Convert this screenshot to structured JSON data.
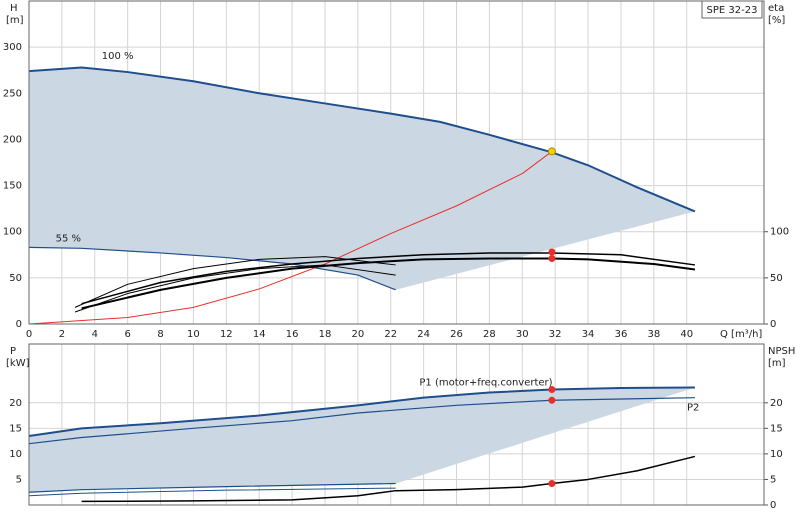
{
  "chart_data": [
    {
      "type": "line",
      "title": "SPE 32-23",
      "y_label": "H",
      "y_unit": "[m]",
      "y2_label": "eta",
      "y2_unit": "[%]",
      "x_label": "Q [m³/h]",
      "xlim": [
        0,
        44.7
      ],
      "xticks": [
        0,
        2,
        4,
        6,
        8,
        10,
        12,
        14,
        16,
        18,
        20,
        22,
        24,
        26,
        28,
        30,
        32,
        34,
        36,
        38,
        40
      ],
      "ylim": [
        0,
        350
      ],
      "yticks": [
        0,
        50,
        100,
        150,
        200,
        250,
        300
      ],
      "y2lim": [
        0,
        350
      ],
      "y2ticks": [
        0,
        50,
        100
      ],
      "grid": true,
      "envelope": [
        0,
        1
      ],
      "envelope_color": "#cbd8e4",
      "series": [
        {
          "name": "100 %",
          "color": "#1f4e8c",
          "width": 2,
          "x": [
            0,
            3.2,
            6,
            10,
            14,
            18,
            22,
            25,
            28,
            31.8,
            34,
            37,
            40.5
          ],
          "values": [
            274,
            278,
            273,
            263,
            250,
            239,
            228,
            219,
            205,
            186,
            172,
            148,
            122
          ]
        },
        {
          "name": "55 %",
          "color": "#1f4e8c",
          "width": 1.2,
          "x": [
            0,
            3.2,
            8,
            12,
            16,
            20,
            22.3
          ],
          "values": [
            83,
            82,
            77,
            72,
            65,
            53,
            37
          ]
        },
        {
          "color": "#e8302a",
          "width": 1,
          "x": [
            0,
            6,
            10,
            14,
            18,
            22,
            26,
            30,
            31.8
          ],
          "values": [
            0,
            7,
            18,
            38,
            65,
            98,
            128,
            163,
            187
          ]
        },
        {
          "color": "#000000",
          "width": 2,
          "axis": "y2",
          "x": [
            3.2,
            8,
            12,
            16,
            20,
            24,
            28,
            31.8,
            34,
            38,
            40.5
          ],
          "values": [
            17,
            37,
            50,
            60,
            66,
            70,
            71,
            71,
            70,
            65,
            59
          ]
        },
        {
          "color": "#000000",
          "width": 1.5,
          "axis": "y2",
          "x": [
            3.2,
            8,
            12,
            16,
            20,
            24,
            28,
            31.8,
            36,
            40.5
          ],
          "values": [
            22,
            45,
            57,
            65,
            71,
            75,
            77,
            77,
            75,
            64
          ]
        },
        {
          "color": "#000000",
          "width": 1,
          "axis": "y2",
          "x": [
            2.8,
            6,
            10,
            14,
            18,
            22.3
          ],
          "values": [
            18,
            43,
            60,
            70,
            73,
            64
          ]
        },
        {
          "color": "#000000",
          "width": 1,
          "axis": "y2",
          "x": [
            2.8,
            6,
            10,
            14,
            18,
            22.3
          ],
          "values": [
            13,
            33,
            50,
            60,
            64,
            53
          ]
        },
        {
          "color": "#e8302a",
          "style": "points",
          "axis": "y2",
          "x": [
            31.8,
            31.8
          ],
          "values": [
            78,
            71
          ]
        },
        {
          "color": "#f5d000",
          "style": "points",
          "x": [
            31.8
          ],
          "values": [
            187
          ]
        }
      ]
    },
    {
      "type": "line",
      "y_label": "P",
      "y_unit": "[kW]",
      "y2_label": "NPSH",
      "y2_unit": "[m]",
      "xlim": [
        0,
        44.7
      ],
      "ylim": [
        0,
        31.5
      ],
      "yticks": [
        5,
        10,
        15,
        20
      ],
      "y2lim": [
        0,
        31.5
      ],
      "y2ticks": [
        0,
        5,
        10,
        15,
        20
      ],
      "grid": true,
      "envelope": [
        0,
        2
      ],
      "envelope_color": "#cbd8e4",
      "series": [
        {
          "name": "P1 (motor+freq.converter)",
          "color": "#1f4e8c",
          "width": 2,
          "x": [
            0,
            3.2,
            8,
            14,
            20,
            24,
            28,
            31.8,
            36,
            40.5
          ],
          "values": [
            13.5,
            15,
            16,
            17.5,
            19.5,
            21,
            22,
            22.6,
            22.9,
            23
          ]
        },
        {
          "name": "P2",
          "color": "#1f4e8c",
          "width": 1.2,
          "x": [
            0,
            3.2,
            10,
            16,
            20,
            26,
            31.8,
            40.5
          ],
          "values": [
            12,
            13.2,
            15,
            16.5,
            18,
            19.5,
            20.5,
            21
          ]
        },
        {
          "color": "#1f4e8c",
          "width": 1.2,
          "x": [
            0,
            3.2,
            12,
            22.3
          ],
          "values": [
            2.5,
            3,
            3.6,
            4.2
          ]
        },
        {
          "color": "#1f4e8c",
          "width": 1,
          "x": [
            0,
            3.2,
            12,
            22.3
          ],
          "values": [
            1.8,
            2.3,
            2.9,
            3.3
          ]
        },
        {
          "color": "#000000",
          "width": 1.5,
          "axis": "y2",
          "x": [
            3.2,
            10,
            16,
            20,
            22.3,
            26,
            30,
            31.8,
            34,
            37,
            40.5
          ],
          "values": [
            0.7,
            0.8,
            1,
            1.8,
            2.8,
            3,
            3.5,
            4.2,
            5,
            6.7,
            9.5
          ]
        },
        {
          "color": "#e8302a",
          "style": "points",
          "x": [
            31.8,
            31.8
          ],
          "values": [
            22.6,
            20.5
          ]
        },
        {
          "color": "#e8302a",
          "style": "points",
          "axis": "y2",
          "x": [
            31.8
          ],
          "values": [
            4.2
          ]
        }
      ]
    }
  ]
}
